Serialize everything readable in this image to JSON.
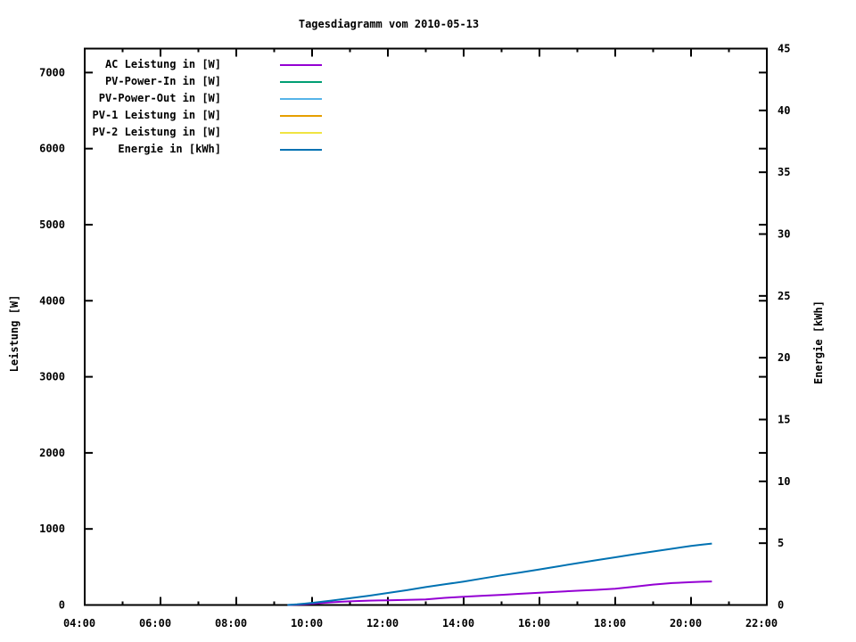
{
  "chart_data": {
    "type": "line",
    "title": "Tagesdiagramm vom 2010-05-13",
    "grid": false,
    "legend_position": "top-left-inside",
    "x_axis": {
      "unit": "time-of-day",
      "range": [
        4,
        22
      ],
      "major_tick_hours": [
        4,
        6,
        8,
        10,
        12,
        14,
        16,
        18,
        20,
        22
      ],
      "major_tick_labels": [
        "04:00",
        "06:00",
        "08:00",
        "10:00",
        "12:00",
        "14:00",
        "16:00",
        "18:00",
        "20:00",
        "22:00"
      ],
      "minor_tick_hours": [
        5,
        7,
        9,
        11,
        13,
        15,
        17,
        19,
        21
      ]
    },
    "y_left": {
      "label": "Leistung [W]",
      "range": [
        0,
        7315
      ],
      "tick_values": [
        0,
        1000,
        2000,
        3000,
        4000,
        5000,
        6000,
        7000
      ],
      "tick_labels": [
        "0",
        "1000",
        "2000",
        "3000",
        "4000",
        "5000",
        "6000",
        "7000"
      ]
    },
    "y_right": {
      "label": "Energie [kWh]",
      "range": [
        0,
        45
      ],
      "tick_values": [
        0,
        5,
        10,
        15,
        20,
        25,
        30,
        35,
        40,
        45
      ],
      "tick_labels": [
        "0",
        "5",
        "10",
        "15",
        "20",
        "25",
        "30",
        "35",
        "40",
        "45"
      ]
    },
    "series": [
      {
        "name": "AC Leistung in [W]",
        "color": "#9400d3",
        "axis": "left",
        "points": [
          [
            9.35,
            0
          ],
          [
            9.6,
            5
          ],
          [
            9.8,
            11
          ],
          [
            10.0,
            18
          ],
          [
            10.25,
            27
          ],
          [
            10.5,
            35
          ],
          [
            10.75,
            42
          ],
          [
            11.0,
            48
          ],
          [
            11.25,
            53
          ],
          [
            11.5,
            57
          ],
          [
            11.75,
            60
          ],
          [
            12.0,
            62
          ],
          [
            12.25,
            65
          ],
          [
            12.5,
            67
          ],
          [
            12.75,
            70
          ],
          [
            13.0,
            73
          ],
          [
            13.25,
            83
          ],
          [
            13.5,
            94
          ],
          [
            13.75,
            101
          ],
          [
            14.0,
            108
          ],
          [
            14.5,
            122
          ],
          [
            15.0,
            134
          ],
          [
            15.5,
            148
          ],
          [
            16.0,
            161
          ],
          [
            16.5,
            175
          ],
          [
            17.0,
            188
          ],
          [
            17.5,
            199
          ],
          [
            18.0,
            213
          ],
          [
            18.5,
            240
          ],
          [
            19.0,
            268
          ],
          [
            19.5,
            288
          ],
          [
            20.0,
            300
          ],
          [
            20.3,
            306
          ],
          [
            20.55,
            310
          ]
        ]
      },
      {
        "name": "PV-Power-In in [W]",
        "color": "#009e73",
        "axis": "left",
        "points": []
      },
      {
        "name": "PV-Power-Out in [W]",
        "color": "#56b4e9",
        "axis": "left",
        "points": []
      },
      {
        "name": "PV-1 Leistung in [W]",
        "color": "#e69f00",
        "axis": "left",
        "points": []
      },
      {
        "name": "PV-2 Leistung in [W]",
        "color": "#f0e442",
        "axis": "left",
        "points": []
      },
      {
        "name": "Energie in [kWh]",
        "color": "#0072b2",
        "axis": "right",
        "points": [
          [
            9.35,
            0
          ],
          [
            9.6,
            0.05
          ],
          [
            9.8,
            0.11
          ],
          [
            10.0,
            0.17
          ],
          [
            10.5,
            0.35
          ],
          [
            11.0,
            0.55
          ],
          [
            11.5,
            0.75
          ],
          [
            12.0,
            0.97
          ],
          [
            12.5,
            1.2
          ],
          [
            13.0,
            1.45
          ],
          [
            13.5,
            1.67
          ],
          [
            14.0,
            1.9
          ],
          [
            14.5,
            2.15
          ],
          [
            15.0,
            2.4
          ],
          [
            15.5,
            2.63
          ],
          [
            16.0,
            2.88
          ],
          [
            16.5,
            3.13
          ],
          [
            17.0,
            3.38
          ],
          [
            17.5,
            3.62
          ],
          [
            18.0,
            3.86
          ],
          [
            18.5,
            4.1
          ],
          [
            19.0,
            4.33
          ],
          [
            19.5,
            4.55
          ],
          [
            20.0,
            4.78
          ],
          [
            20.3,
            4.88
          ],
          [
            20.55,
            4.97
          ]
        ]
      }
    ]
  }
}
